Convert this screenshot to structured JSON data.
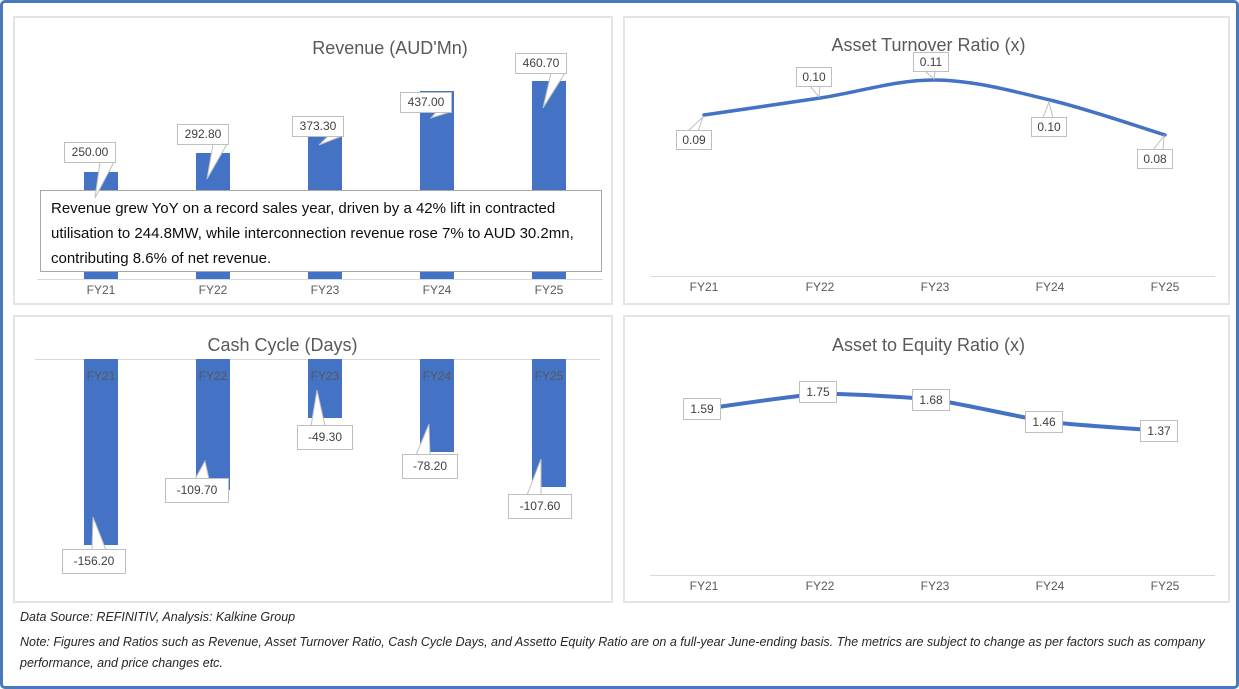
{
  "colors": {
    "series_blue": "#4472C4",
    "outer_border_blue": "#4879BD",
    "axis_gray": "#D9D9D9",
    "title_gray": "#595959",
    "data_label_text": "#404040",
    "callout_border": "#BFBFBF"
  },
  "annotation": {
    "text": "Revenue grew YoY on a record sales year, driven by a 42% lift in contracted utilisation to 244.8MW, while interconnection revenue rose 7% to AUD 30.2mn, contributing 8.6% of net revenue."
  },
  "footer": {
    "source_line": "Data Source: REFINITIV, Analysis: Kalkine Group",
    "note_line": "Note: Figures and Ratios such as Revenue, Asset Turnover Ratio, Cash Cycle Days, and Assetto Equity Ratio are on a full-year June-ending basis. The metrics are subject to change as per factors such as company performance, and price changes etc."
  },
  "chart_data": [
    {
      "id": "revenue",
      "type": "bar",
      "title": "Revenue (AUD'Mn)",
      "categories": [
        "FY21",
        "FY22",
        "FY23",
        "FY24",
        "FY25"
      ],
      "values": [
        250.0,
        292.8,
        373.3,
        437.0,
        460.7
      ],
      "data_labels": [
        "250.00",
        "292.80",
        "373.30",
        "437.00",
        "460.70"
      ],
      "xlabel": "",
      "ylabel": "",
      "ylim": [
        0,
        580
      ],
      "grid": false,
      "legend": "none",
      "data_label_style": "callout-boxes"
    },
    {
      "id": "asset_turnover",
      "type": "line",
      "title": "Asset Turnover Ratio (x)",
      "categories": [
        "FY21",
        "FY22",
        "FY23",
        "FY24",
        "FY25"
      ],
      "values": [
        0.09,
        0.1,
        0.11,
        0.1,
        0.08
      ],
      "data_labels": [
        "0.09",
        "0.10",
        "0.11",
        "0.10",
        "0.08"
      ],
      "xlabel": "",
      "ylabel": "",
      "grid": false,
      "legend": "none",
      "smoothed_line": true,
      "data_label_style": "callout-boxes"
    },
    {
      "id": "cash_cycle",
      "type": "bar",
      "title": "Cash Cycle (Days)",
      "categories": [
        "FY21",
        "FY22",
        "FY23",
        "FY24",
        "FY25"
      ],
      "values": [
        -156.2,
        -109.7,
        -49.3,
        -78.2,
        -107.6
      ],
      "data_labels": [
        "-156.20",
        "-109.70",
        "-49.30",
        "-78.20",
        "-107.60"
      ],
      "xlabel": "",
      "ylabel": "",
      "ylim": [
        -185,
        0
      ],
      "grid": false,
      "legend": "none",
      "category_labels_position": "inside-top-of-bars",
      "data_label_style": "callout-boxes"
    },
    {
      "id": "asset_to_equity",
      "type": "line",
      "title": "Asset to Equity Ratio (x)",
      "categories": [
        "FY21",
        "FY22",
        "FY23",
        "FY24",
        "FY25"
      ],
      "values": [
        1.59,
        1.75,
        1.68,
        1.46,
        1.37
      ],
      "data_labels": [
        "1.59",
        "1.75",
        "1.68",
        "1.46",
        "1.37"
      ],
      "xlabel": "",
      "ylabel": "",
      "grid": false,
      "legend": "none",
      "smoothed_line": true,
      "data_label_style": "plain-boxes-on-line"
    }
  ]
}
